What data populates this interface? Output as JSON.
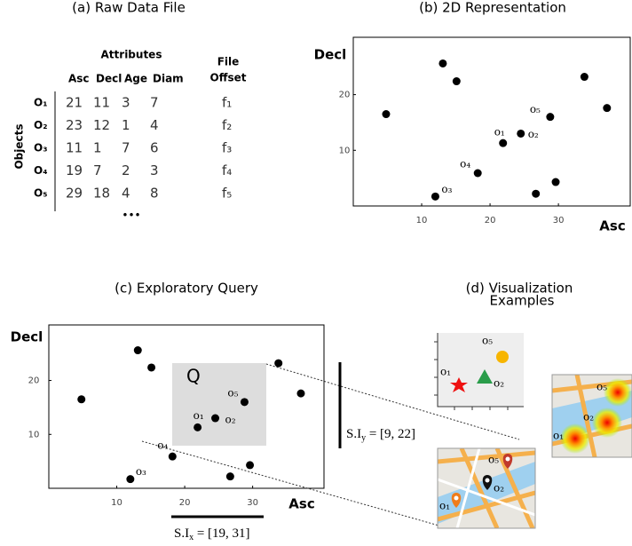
{
  "panel_a": {
    "title": "(a) Raw Data File",
    "attributes_header": "Attributes",
    "file_offset_header": [
      "File",
      "Offset"
    ],
    "objects_header": "Objects",
    "columns": [
      "Asc",
      "Decl",
      "Age",
      "Diam"
    ],
    "rows": [
      {
        "object": "O₁",
        "values": [
          21,
          11,
          3,
          7
        ],
        "offset": "f₁"
      },
      {
        "object": "O₂",
        "values": [
          23,
          12,
          1,
          4
        ],
        "offset": "f₂"
      },
      {
        "object": "O₃",
        "values": [
          11,
          1,
          7,
          6
        ],
        "offset": "f₃"
      },
      {
        "object": "O₄",
        "values": [
          19,
          7,
          2,
          3
        ],
        "offset": "f₄"
      },
      {
        "object": "O₅",
        "values": [
          29,
          18,
          4,
          8
        ],
        "offset": "f₅"
      }
    ],
    "more": "•••"
  },
  "panel_b": {
    "title": "(b) 2D Representation",
    "x_label": "Asc",
    "y_label": "Decl",
    "xlim": [
      0,
      40.5
    ],
    "ylim": [
      0,
      30.3
    ],
    "xticks": [
      10,
      20,
      30
    ],
    "yticks": [
      10,
      20
    ],
    "points": [
      {
        "x": 4.8,
        "y": 16.5
      },
      {
        "x": 13.1,
        "y": 25.6
      },
      {
        "x": 15.1,
        "y": 22.4
      },
      {
        "x": 33.8,
        "y": 23.2
      },
      {
        "x": 37.1,
        "y": 17.6
      },
      {
        "x": 28.8,
        "y": 16.0,
        "label": "o₅"
      },
      {
        "x": 21.9,
        "y": 11.3,
        "label": "o₁"
      },
      {
        "x": 24.5,
        "y": 13.0,
        "label": "o₂"
      },
      {
        "x": 18.2,
        "y": 5.9,
        "label": "o₄"
      },
      {
        "x": 12.0,
        "y": 1.7,
        "label": "o₃"
      },
      {
        "x": 26.7,
        "y": 2.2
      },
      {
        "x": 29.6,
        "y": 4.3
      }
    ]
  },
  "panel_c": {
    "title": "(c) Exploratory Query",
    "query_label": "Q",
    "interval_y": {
      "base": "S.I",
      "sub": "y",
      "rest": " = [9, 22]"
    },
    "interval_x": {
      "base": "S.I",
      "sub": "x",
      "rest": " = [19, 31]"
    }
  },
  "panel_d": {
    "title": [
      "(d) Visualization",
      "Examples"
    ],
    "plot_labels": [
      "o₅",
      "o₁",
      "o₂"
    ],
    "map1_labels": [
      "o₅",
      "o₂",
      "o₁"
    ],
    "map2_labels": [
      "o₅",
      "o₂",
      "o₁"
    ]
  }
}
